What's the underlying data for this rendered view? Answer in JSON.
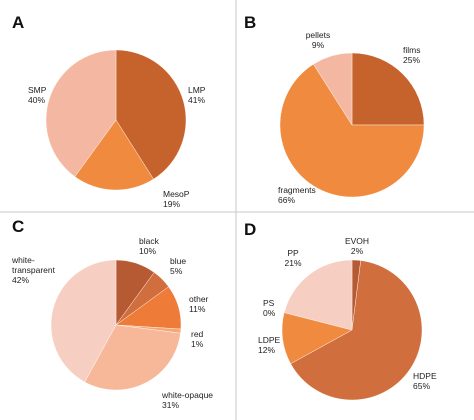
{
  "chart_data": [
    {
      "type": "pie",
      "panel": "A",
      "slices": [
        {
          "name": "LMP",
          "value": 41,
          "label": "41%",
          "color": "#c6622b"
        },
        {
          "name": "MesoP",
          "value": 19,
          "label": "19%",
          "color": "#f08a3e"
        },
        {
          "name": "SMP",
          "value": 40,
          "label": "40%",
          "color": "#f4b8a2"
        }
      ]
    },
    {
      "type": "pie",
      "panel": "B",
      "slices": [
        {
          "name": "films",
          "value": 25,
          "label": "25%",
          "color": "#c6622b"
        },
        {
          "name": "fragments",
          "value": 66,
          "label": "66%",
          "color": "#f08a3e"
        },
        {
          "name": "pellets",
          "value": 9,
          "label": "9%",
          "color": "#f4b8a2"
        }
      ]
    },
    {
      "type": "pie",
      "panel": "C",
      "slices": [
        {
          "name": "black",
          "value": 10,
          "label": "10%",
          "color": "#b55a33"
        },
        {
          "name": "blue",
          "value": 5,
          "label": "5%",
          "color": "#d06e3e"
        },
        {
          "name": "other",
          "value": 11,
          "label": "11%",
          "color": "#ee7c38"
        },
        {
          "name": "red",
          "value": 1,
          "label": "1%",
          "color": "#f7a574"
        },
        {
          "name": "white-opaque",
          "value": 31,
          "label": "31%",
          "color": "#f6b898"
        },
        {
          "name": "white-transparent",
          "value": 42,
          "label": "42%",
          "color": "#f7cfc2"
        }
      ]
    },
    {
      "type": "pie",
      "panel": "D",
      "slices": [
        {
          "name": "EVOH",
          "value": 2,
          "label": "2%",
          "color": "#b55a33"
        },
        {
          "name": "HDPE",
          "value": 65,
          "label": "65%",
          "color": "#d06e3e"
        },
        {
          "name": "LDPE",
          "value": 12,
          "label": "12%",
          "color": "#f08a3e"
        },
        {
          "name": "PS",
          "value": 0,
          "label": "0%",
          "color": "#f7a574"
        },
        {
          "name": "PP",
          "value": 21,
          "label": "21%",
          "color": "#f7cfc2"
        }
      ]
    }
  ]
}
